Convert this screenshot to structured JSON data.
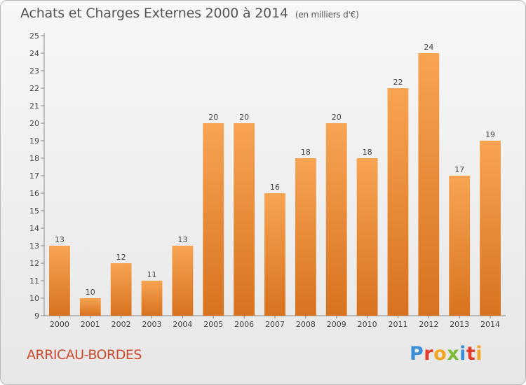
{
  "chart_data": {
    "type": "bar",
    "title": "Achats et Charges Externes 2000 à 2014",
    "subtitle": "(en milliers d'€)",
    "categories": [
      "2000",
      "2001",
      "2002",
      "2003",
      "2004",
      "2005",
      "2006",
      "2007",
      "2008",
      "2009",
      "2010",
      "2011",
      "2012",
      "2013",
      "2014"
    ],
    "values": [
      13,
      10,
      12,
      11,
      13,
      20,
      20,
      16,
      18,
      20,
      18,
      22,
      24,
      17,
      19
    ],
    "ylim": [
      9,
      25
    ],
    "yticks": [
      9,
      10,
      11,
      12,
      13,
      14,
      15,
      16,
      17,
      18,
      19,
      20,
      21,
      22,
      23,
      24,
      25
    ],
    "grid": false,
    "bar_color": "#f0923a"
  },
  "commune": "ARRICAU-BORDES",
  "brand": {
    "text": "Proxiti",
    "letter_colors": [
      "#3a8fd6",
      "#e23b2b",
      "#f2a623",
      "#7dbb35",
      "#3a8fd6",
      "#e23b2b",
      "#f2a623"
    ]
  }
}
